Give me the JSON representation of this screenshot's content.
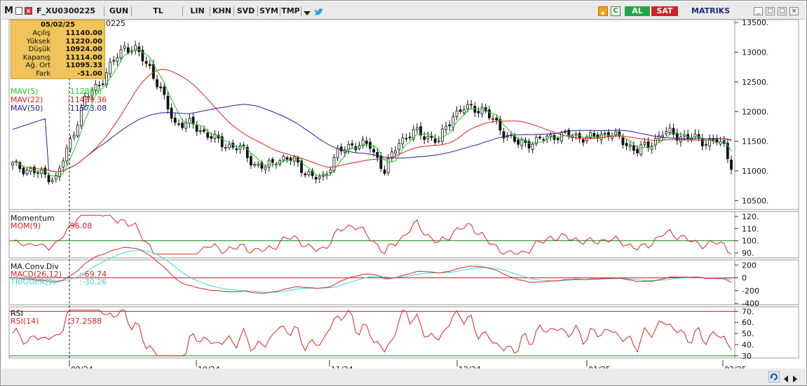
{
  "toolbar": {
    "logo": "M",
    "symbol": "F_XU0300225",
    "buttons": [
      "GUN",
      "TL",
      "LIN",
      "KHN",
      "SVD",
      "SYM",
      "TMP"
    ],
    "lightning_icon": "lightning-icon",
    "c_label": "C",
    "buy_label": "AL",
    "sell_label": "SAT",
    "brand": "MATRIKS"
  },
  "chart_title": "0225",
  "info": {
    "date": "05/02/25",
    "rows": [
      {
        "label": "Açılış",
        "value": "11140.00"
      },
      {
        "label": "Yüksek",
        "value": "11220.00"
      },
      {
        "label": "Düşük",
        "value": "10924.00"
      },
      {
        "label": "Kapanış",
        "value": "11114.00"
      },
      {
        "label": "Ağ. Ort",
        "value": "11095.33"
      },
      {
        "label": "Fark",
        "value": "-51.00"
      }
    ]
  },
  "price_panel": {
    "ma_labels": [
      {
        "text": "MAV(5)",
        "value": ":11288.6",
        "color": "#22cc22"
      },
      {
        "text": "MAV(22)",
        "value": ":11439.36",
        "color": "#dd2222"
      },
      {
        "text": "MAV(50)",
        "value": ":11573.08",
        "color": "#22229a"
      }
    ],
    "y_ticks": [
      "13500.",
      "13000.",
      "12500.",
      "12000.",
      "11500.",
      "11000.",
      "10500."
    ]
  },
  "momentum_panel": {
    "title": "Momentum",
    "label": "MOM(9)",
    "value": ":96.08",
    "y_ticks": [
      "120.",
      "110.",
      "100.",
      "90."
    ]
  },
  "macd_panel": {
    "title": "MA.Conv.Div",
    "macd_label": "MACD(26,12)",
    "macd_value": ":-69.74",
    "trigger_label": "TRIGGER(9)",
    "trigger_value": ":-30.26",
    "y_ticks": [
      "200",
      "0",
      "-200",
      "-400"
    ]
  },
  "rsi_panel": {
    "title": "RSI",
    "label": "RSI(14)",
    "value": ":37.2588",
    "y_ticks": [
      "70.",
      "60.",
      "50.",
      "40.",
      "30"
    ]
  },
  "x_axis": {
    "labels": [
      "09/24",
      "10/24",
      "11/24",
      "12/24",
      "01/25",
      "02/25"
    ]
  },
  "colors": {
    "candle_up": "#ffffff",
    "candle_down": "#111111",
    "mav5": "#22cc22",
    "mav22": "#dd2222",
    "mav50": "#22229a",
    "macd": "#dd2222",
    "trigger": "#33dddd",
    "buy": "#22a64a",
    "sell": "#d32222"
  }
}
